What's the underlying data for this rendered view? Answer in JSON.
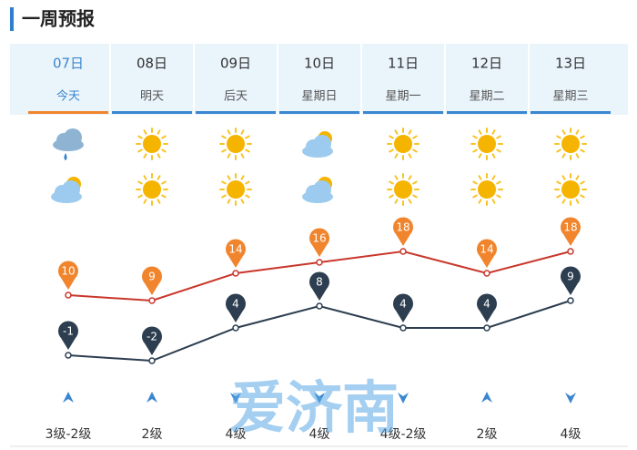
{
  "header": {
    "title": "一周预报",
    "watermark": "爱济南"
  },
  "days": [
    {
      "weekday": "今天",
      "wind": "3级-2级"
    },
    {
      "weekday": "明天",
      "wind": "2级"
    },
    {
      "weekday": "后天",
      "wind": "4级"
    },
    {
      "weekday": "星期日",
      "wind": "4级"
    },
    {
      "weekday": "星期一",
      "wind": "4级-2级"
    },
    {
      "weekday": "星期二",
      "wind": "2级"
    },
    {
      "weekday": "星期三",
      "wind": "4级"
    }
  ],
  "chart_data": {
    "type": "line",
    "categories": [
      "07日",
      "08日",
      "09日",
      "10日",
      "11日",
      "12日",
      "13日"
    ],
    "series": [
      {
        "color": "#c9372c",
        "marker_color": "#f0852d",
        "values": [
          10,
          9,
          14,
          16,
          18,
          14,
          18
        ]
      },
      {
        "color": "#2c3e50",
        "marker_color": "#2c3e50",
        "values": [
          -1,
          -2,
          4,
          8,
          4,
          4,
          9
        ]
      }
    ]
  }
}
